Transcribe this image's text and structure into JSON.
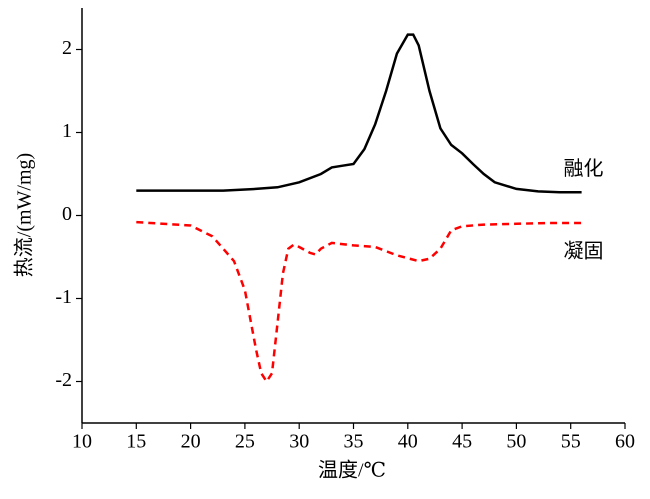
{
  "chart_data": {
    "type": "line",
    "xlabel": "温度/℃",
    "ylabel": "热流/(mW/mg)",
    "xlim": [
      10,
      60
    ],
    "xticks": [
      10,
      15,
      20,
      25,
      30,
      35,
      40,
      45,
      50,
      55,
      60
    ],
    "ylim": [
      -2.5,
      2.5
    ],
    "yticks": [
      -2,
      -1,
      0,
      1,
      2
    ],
    "series": [
      {
        "name": "融化",
        "color": "#000000",
        "dash": "solid",
        "x": [
          15,
          17,
          20,
          23,
          26,
          28,
          30,
          32,
          33,
          34,
          35,
          36,
          37,
          38,
          39,
          40,
          40.5,
          41,
          42,
          43,
          44,
          45,
          46,
          47,
          48,
          50,
          52,
          54,
          56
        ],
        "values": [
          0.3,
          0.3,
          0.3,
          0.3,
          0.32,
          0.34,
          0.4,
          0.5,
          0.58,
          0.6,
          0.62,
          0.8,
          1.1,
          1.5,
          1.95,
          2.18,
          2.18,
          2.05,
          1.5,
          1.05,
          0.85,
          0.75,
          0.62,
          0.5,
          0.4,
          0.32,
          0.29,
          0.28,
          0.28
        ]
      },
      {
        "name": "凝固",
        "color": "#ff0000",
        "dash": "dashed",
        "x": [
          15,
          20,
          22,
          24,
          25,
          26,
          26.5,
          27,
          27.5,
          28,
          28.5,
          29,
          29.5,
          30,
          31,
          31.5,
          32,
          33,
          35,
          37,
          39,
          41,
          42,
          43,
          44,
          45,
          47,
          50,
          53,
          56
        ],
        "values": [
          -0.08,
          -0.12,
          -0.25,
          -0.55,
          -0.9,
          -1.6,
          -1.9,
          -2.0,
          -1.9,
          -1.3,
          -0.7,
          -0.4,
          -0.35,
          -0.38,
          -0.45,
          -0.47,
          -0.4,
          -0.33,
          -0.36,
          -0.38,
          -0.48,
          -0.55,
          -0.52,
          -0.4,
          -0.18,
          -0.13,
          -0.11,
          -0.1,
          -0.09,
          -0.09
        ]
      }
    ]
  }
}
